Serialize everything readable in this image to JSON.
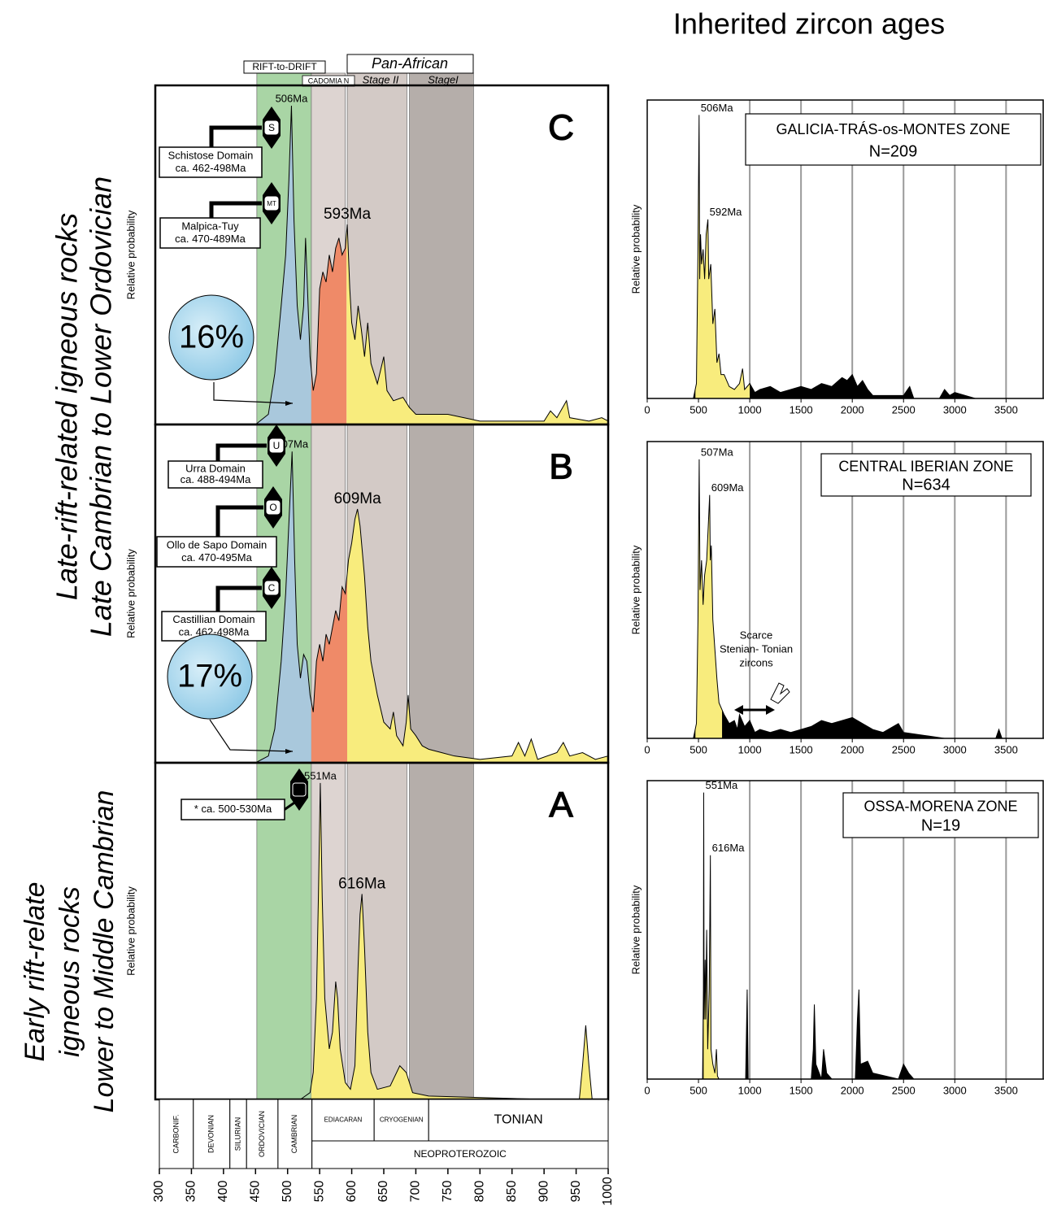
{
  "title": "Inherited zircon ages",
  "row_labels": [
    [
      "Late-rift-related igneous rocks",
      "Late Cambrian to Lower Ordovician"
    ],
    [
      "Early rift-relate",
      "igneous rocks",
      "Lower to Middle Cambrian"
    ]
  ],
  "band_labels": {
    "rift": "RIFT-to-DRIFT",
    "cadomian": "CADOMIA N",
    "pan_african": "Pan-African",
    "stage2": "Stage II",
    "stage1": "StageI"
  },
  "bands": [
    {
      "range": [
        452,
        537
      ],
      "color": "#a9d5a5"
    },
    {
      "range": [
        537,
        590
      ],
      "color": "#ddd4d1"
    },
    {
      "range": [
        593,
        686
      ],
      "color": "#d3cac6"
    },
    {
      "range": [
        690,
        790
      ],
      "color": "#b5aeaa"
    }
  ],
  "time_scale": {
    "periods": [
      {
        "label": "CARBONIF.",
        "range": [
          300,
          353
        ],
        "vertical": true
      },
      {
        "label": "DEVONIAN",
        "range": [
          353,
          410
        ],
        "vertical": true
      },
      {
        "label": "SILURIAN",
        "range": [
          410,
          436
        ],
        "vertical": true
      },
      {
        "label": "ORDOVICIAN",
        "range": [
          436,
          485
        ],
        "vertical": true
      },
      {
        "label": "CAMBRIAN",
        "range": [
          485,
          538
        ],
        "vertical": true
      },
      {
        "label": "EDIACARAN",
        "range": [
          538,
          635
        ],
        "vertical": false
      },
      {
        "label": "CRYOGENIAN",
        "range": [
          635,
          720
        ],
        "vertical": false
      },
      {
        "label": "TONIAN",
        "range": [
          720,
          1000
        ],
        "vertical": false
      }
    ],
    "era": {
      "label": "NEOPROTEROZOIC",
      "range": [
        538,
        1000
      ]
    }
  },
  "chart_data": [
    {
      "type": "area",
      "panel": "C",
      "ylabel": "Relative probability",
      "xlim": [
        300,
        1000
      ],
      "ylim": [
        0,
        100
      ],
      "x": [
        300,
        450,
        470,
        480,
        490,
        497,
        502,
        506,
        510,
        515,
        520,
        525,
        528,
        531,
        535,
        540,
        545,
        550,
        555,
        560,
        565,
        570,
        575,
        580,
        585,
        590,
        593,
        597,
        600,
        605,
        610,
        615,
        620,
        625,
        630,
        640,
        650,
        655,
        665,
        680,
        690,
        700,
        750,
        800,
        850,
        900,
        910,
        920,
        935,
        940,
        970,
        990,
        1000
      ],
      "values": [
        0,
        0,
        3,
        15,
        35,
        50,
        72,
        94,
        60,
        35,
        25,
        35,
        55,
        40,
        20,
        10,
        15,
        40,
        45,
        42,
        50,
        45,
        52,
        55,
        50,
        52,
        59,
        40,
        30,
        25,
        35,
        28,
        20,
        30,
        18,
        12,
        20,
        10,
        7,
        8,
        5,
        3,
        3,
        1,
        1,
        1,
        4,
        2,
        7,
        2,
        1,
        2,
        1
      ],
      "fills": [
        {
          "from": 300,
          "to": 537,
          "color": "#a9c8dc"
        },
        {
          "from": 537,
          "to": 592,
          "color": "#ef8a68"
        },
        {
          "from": 592,
          "to": 1000,
          "color": "#f8ec7d"
        }
      ],
      "peaks": [
        {
          "value": 506,
          "label": "506Ma"
        },
        {
          "value": 593,
          "label": "593Ma"
        }
      ],
      "domains": [
        {
          "name": "Schistose Domain",
          "age": "ca. 462-498Ma",
          "marker": "S"
        },
        {
          "name": "Malpica-Tuy",
          "age": "ca. 470-489Ma",
          "marker": "MT"
        }
      ],
      "share": {
        "value": 16,
        "label": "16%"
      }
    },
    {
      "type": "area",
      "panel": "B",
      "ylabel": "Relative probability",
      "xlim": [
        300,
        1000
      ],
      "ylim": [
        0,
        100
      ],
      "x": [
        300,
        450,
        470,
        480,
        490,
        497,
        503,
        507,
        511,
        515,
        520,
        525,
        530,
        535,
        540,
        545,
        550,
        555,
        560,
        565,
        570,
        575,
        580,
        585,
        590,
        595,
        600,
        605,
        609,
        613,
        620,
        625,
        630,
        640,
        650,
        660,
        665,
        670,
        680,
        685,
        688,
        692,
        700,
        710,
        720,
        740,
        760,
        800,
        850,
        860,
        870,
        880,
        890,
        920,
        930,
        940,
        960,
        980,
        1000
      ],
      "values": [
        0,
        0,
        2,
        10,
        30,
        50,
        75,
        92,
        60,
        35,
        25,
        32,
        30,
        20,
        15,
        30,
        35,
        30,
        38,
        35,
        40,
        45,
        42,
        52,
        50,
        60,
        65,
        72,
        75,
        70,
        55,
        40,
        30,
        20,
        12,
        10,
        15,
        8,
        5,
        12,
        20,
        10,
        8,
        5,
        4,
        3,
        2,
        1,
        2,
        6,
        2,
        7,
        1,
        3,
        6,
        2,
        3,
        1,
        2
      ],
      "fills": [
        {
          "from": 300,
          "to": 537,
          "color": "#a9c8dc"
        },
        {
          "from": 537,
          "to": 593,
          "color": "#ef8a68"
        },
        {
          "from": 593,
          "to": 1000,
          "color": "#f8ec7d"
        }
      ],
      "peaks": [
        {
          "value": 507,
          "label": "507Ma"
        },
        {
          "value": 609,
          "label": "609Ma"
        }
      ],
      "domains": [
        {
          "name": "Urra Domain",
          "age": "ca. 488-494Ma",
          "marker": "U"
        },
        {
          "name": "Ollo de Sapo Domain",
          "age": "ca. 470-495Ma",
          "marker": "O"
        },
        {
          "name": "Castillian Domain",
          "age": "ca. 462-498Ma",
          "marker": "C"
        }
      ],
      "share": {
        "value": 17,
        "label": "17%"
      }
    },
    {
      "type": "area",
      "panel": "A",
      "ylabel": "Relative probability",
      "xlim": [
        300,
        1000
      ],
      "ylim": [
        0,
        100
      ],
      "xticks": [
        300,
        350,
        400,
        450,
        500,
        550,
        600,
        650,
        700,
        750,
        800,
        850,
        900,
        950,
        1000
      ],
      "x": [
        300,
        450,
        520,
        535,
        540,
        545,
        548,
        551,
        554,
        558,
        565,
        570,
        575,
        578,
        582,
        590,
        598,
        605,
        610,
        613,
        616,
        620,
        625,
        630,
        640,
        660,
        675,
        685,
        695,
        720,
        900,
        955,
        960,
        965,
        970,
        975,
        1000
      ],
      "values": [
        0,
        0,
        0,
        2,
        8,
        30,
        60,
        94,
        60,
        30,
        15,
        20,
        35,
        30,
        15,
        5,
        3,
        10,
        40,
        55,
        61,
        45,
        20,
        8,
        3,
        4,
        10,
        8,
        2,
        1,
        0,
        0,
        10,
        22,
        10,
        0,
        0
      ],
      "fills": [
        {
          "from": 537,
          "to": 1000,
          "color": "#f8ec7d"
        }
      ],
      "peaks": [
        {
          "value": 551,
          "label": "551Ma"
        },
        {
          "value": 616,
          "label": "616Ma"
        }
      ],
      "domains": [
        {
          "name": "* ca. 500-530Ma",
          "marker": "*"
        }
      ]
    },
    {
      "type": "area",
      "zone": "GALICIA-TRÁS-os-MONTES ZONE",
      "n": 209,
      "n_label": "N=209",
      "ylabel": "Relative probability",
      "xlim": [
        0,
        3870
      ],
      "ylim": [
        0,
        100
      ],
      "xticks": [
        0,
        500,
        1000,
        1500,
        2000,
        2500,
        3000,
        3500
      ],
      "xgrid": [
        1000,
        1500,
        2000,
        2500,
        3000,
        3500
      ],
      "x": [
        0,
        450,
        480,
        495,
        506,
        512,
        520,
        530,
        545,
        560,
        575,
        592,
        600,
        620,
        640,
        660,
        680,
        700,
        720,
        750,
        800,
        850,
        900,
        930,
        950,
        1000,
        1050,
        1100,
        1200,
        1300,
        1400,
        1500,
        1600,
        1700,
        1800,
        1900,
        1950,
        2000,
        2050,
        2100,
        2150,
        2200,
        2500,
        2560,
        2600,
        2850,
        2900,
        2950,
        3000,
        3200,
        3870
      ],
      "values": [
        0,
        0,
        5,
        50,
        95,
        40,
        55,
        45,
        50,
        40,
        55,
        60,
        40,
        45,
        25,
        30,
        12,
        15,
        8,
        8,
        4,
        3,
        5,
        10,
        3,
        5,
        2,
        3,
        4,
        2,
        3,
        4,
        3,
        5,
        4,
        7,
        6,
        8,
        4,
        6,
        3,
        1,
        1,
        4,
        0,
        0,
        3,
        1,
        2,
        0,
        0
      ],
      "fills": [
        {
          "from": 0,
          "to": 3870,
          "color": "#000000"
        },
        {
          "from": 470,
          "to": 1000,
          "color": "#f8ec7d"
        }
      ],
      "peaks": [
        {
          "value": 506,
          "label": "506Ma"
        },
        {
          "value": 592,
          "label": "592Ma"
        }
      ]
    },
    {
      "type": "area",
      "zone": "CENTRAL IBERIAN ZONE",
      "n": 634,
      "n_label": "N=634",
      "ylabel": "Relative probability",
      "xlim": [
        0,
        3870
      ],
      "ylim": [
        0,
        100
      ],
      "xticks": [
        0,
        500,
        1000,
        1500,
        2000,
        2500,
        3000,
        3500
      ],
      "xgrid": [
        1000,
        1500,
        2000,
        2500,
        3000,
        3500
      ],
      "x": [
        0,
        450,
        480,
        495,
        507,
        515,
        530,
        545,
        560,
        580,
        600,
        609,
        615,
        625,
        640,
        660,
        680,
        700,
        750,
        800,
        850,
        880,
        900,
        950,
        1000,
        1050,
        1100,
        1200,
        1300,
        1400,
        1500,
        1600,
        1700,
        1800,
        1900,
        2000,
        2100,
        2200,
        2300,
        2400,
        2450,
        2500,
        2700,
        2900,
        3400,
        3430,
        3460,
        3870
      ],
      "values": [
        0,
        0,
        5,
        40,
        94,
        50,
        60,
        45,
        55,
        60,
        75,
        82,
        60,
        65,
        40,
        30,
        20,
        12,
        8,
        5,
        6,
        3,
        8,
        4,
        6,
        2,
        3,
        2,
        3,
        2,
        3,
        4,
        6,
        5,
        6,
        7,
        5,
        3,
        2,
        4,
        5,
        2,
        1,
        0,
        0,
        3,
        0,
        0
      ],
      "fills": [
        {
          "from": 0,
          "to": 3870,
          "color": "#000000"
        },
        {
          "from": 470,
          "to": 730,
          "color": "#f8ec7d"
        }
      ],
      "peaks": [
        {
          "value": 507,
          "label": "507Ma"
        },
        {
          "value": 609,
          "label": "609Ma"
        }
      ],
      "annotation": [
        "Scarce",
        "Stenian- Tonian",
        "zircons"
      ]
    },
    {
      "type": "area",
      "zone": "OSSA-MORENA ZONE",
      "n": 19,
      "n_label": "N=19",
      "ylabel": "Relative probability",
      "xlim": [
        0,
        3870
      ],
      "ylim": [
        0,
        100
      ],
      "xticks": [
        0,
        500,
        1000,
        1500,
        2000,
        2500,
        3000,
        3500
      ],
      "xgrid": [
        1000,
        1500,
        2000,
        2500,
        3000,
        3500
      ],
      "x": [
        0,
        540,
        548,
        551,
        555,
        565,
        570,
        580,
        590,
        605,
        616,
        622,
        640,
        660,
        675,
        685,
        700,
        960,
        975,
        985,
        1600,
        1620,
        1630,
        1645,
        1700,
        1720,
        1750,
        1800,
        2030,
        2050,
        2065,
        2080,
        2150,
        2200,
        2450,
        2500,
        2550,
        2600,
        3870
      ],
      "values": [
        0,
        0,
        30,
        96,
        20,
        40,
        20,
        50,
        10,
        30,
        75,
        10,
        5,
        2,
        10,
        1,
        0,
        0,
        30,
        0,
        0,
        10,
        25,
        5,
        0,
        10,
        2,
        0,
        0,
        20,
        30,
        5,
        6,
        2,
        0,
        5,
        2,
        0,
        0
      ],
      "fills": [
        {
          "from": 0,
          "to": 3870,
          "color": "#000000"
        },
        {
          "from": 550,
          "to": 690,
          "color": "#f8ec7d"
        }
      ],
      "peaks": [
        {
          "value": 551,
          "label": "551Ma"
        },
        {
          "value": 616,
          "label": "616Ma"
        }
      ]
    }
  ]
}
